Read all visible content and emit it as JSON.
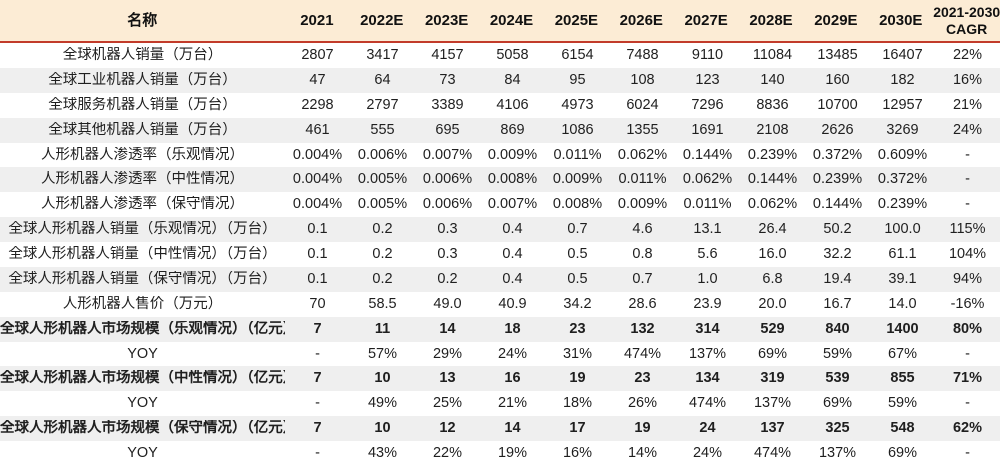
{
  "chart_data": {
    "type": "table",
    "columns": [
      "名称",
      "2021",
      "2022E",
      "2023E",
      "2024E",
      "2025E",
      "2026E",
      "2027E",
      "2028E",
      "2029E",
      "2030E",
      "2021-2030 CAGR"
    ],
    "cagr_header": {
      "line1": "2021-2030",
      "line2": "CAGR"
    },
    "rows": [
      {
        "label": "全球机器人销量（万台）",
        "bold": false,
        "values": [
          "2807",
          "3417",
          "4157",
          "5058",
          "6154",
          "7488",
          "9110",
          "11084",
          "13485",
          "16407",
          "22%"
        ]
      },
      {
        "label": "全球工业机器人销量（万台）",
        "bold": false,
        "values": [
          "47",
          "64",
          "73",
          "84",
          "95",
          "108",
          "123",
          "140",
          "160",
          "182",
          "16%"
        ]
      },
      {
        "label": "全球服务机器人销量（万台）",
        "bold": false,
        "values": [
          "2298",
          "2797",
          "3389",
          "4106",
          "4973",
          "6024",
          "7296",
          "8836",
          "10700",
          "12957",
          "21%"
        ]
      },
      {
        "label": "全球其他机器人销量（万台）",
        "bold": false,
        "values": [
          "461",
          "555",
          "695",
          "869",
          "1086",
          "1355",
          "1691",
          "2108",
          "2626",
          "3269",
          "24%"
        ]
      },
      {
        "label": "人形机器人渗透率（乐观情况）",
        "bold": false,
        "values": [
          "0.004%",
          "0.006%",
          "0.007%",
          "0.009%",
          "0.011%",
          "0.062%",
          "0.144%",
          "0.239%",
          "0.372%",
          "0.609%",
          "-"
        ]
      },
      {
        "label": "人形机器人渗透率（中性情况）",
        "bold": false,
        "values": [
          "0.004%",
          "0.005%",
          "0.006%",
          "0.008%",
          "0.009%",
          "0.011%",
          "0.062%",
          "0.144%",
          "0.239%",
          "0.372%",
          "-"
        ]
      },
      {
        "label": "人形机器人渗透率（保守情况）",
        "bold": false,
        "values": [
          "0.004%",
          "0.005%",
          "0.006%",
          "0.007%",
          "0.008%",
          "0.009%",
          "0.011%",
          "0.062%",
          "0.144%",
          "0.239%",
          "-"
        ]
      },
      {
        "label": "全球人形机器人销量（乐观情况）（万台）",
        "bold": false,
        "values": [
          "0.1",
          "0.2",
          "0.3",
          "0.4",
          "0.7",
          "4.6",
          "13.1",
          "26.4",
          "50.2",
          "100.0",
          "115%"
        ]
      },
      {
        "label": "全球人形机器人销量（中性情况）（万台）",
        "bold": false,
        "values": [
          "0.1",
          "0.2",
          "0.3",
          "0.4",
          "0.5",
          "0.8",
          "5.6",
          "16.0",
          "32.2",
          "61.1",
          "104%"
        ]
      },
      {
        "label": "全球人形机器人销量（保守情况）（万台）",
        "bold": false,
        "values": [
          "0.1",
          "0.2",
          "0.2",
          "0.4",
          "0.5",
          "0.7",
          "1.0",
          "6.8",
          "19.4",
          "39.1",
          "94%"
        ]
      },
      {
        "label": "人形机器人售价（万元）",
        "bold": false,
        "values": [
          "70",
          "58.5",
          "49.0",
          "40.9",
          "34.2",
          "28.6",
          "23.9",
          "20.0",
          "16.7",
          "14.0",
          "-16%"
        ]
      },
      {
        "label": "全球人形机器人市场规模（乐观情况）（亿元）",
        "bold": true,
        "values": [
          "7",
          "11",
          "14",
          "18",
          "23",
          "132",
          "314",
          "529",
          "840",
          "1400",
          "80%"
        ]
      },
      {
        "label": "YOY",
        "bold": false,
        "values": [
          "-",
          "57%",
          "29%",
          "24%",
          "31%",
          "474%",
          "137%",
          "69%",
          "59%",
          "67%",
          "-"
        ]
      },
      {
        "label": "全球人形机器人市场规模（中性情况）（亿元）",
        "bold": true,
        "values": [
          "7",
          "10",
          "13",
          "16",
          "19",
          "23",
          "134",
          "319",
          "539",
          "855",
          "71%"
        ]
      },
      {
        "label": "YOY",
        "bold": false,
        "values": [
          "-",
          "49%",
          "25%",
          "21%",
          "18%",
          "26%",
          "474%",
          "137%",
          "69%",
          "59%",
          "-"
        ]
      },
      {
        "label": "全球人形机器人市场规模（保守情况）（亿元）",
        "bold": true,
        "values": [
          "7",
          "10",
          "12",
          "14",
          "17",
          "19",
          "24",
          "137",
          "325",
          "548",
          "62%"
        ]
      },
      {
        "label": "YOY",
        "bold": false,
        "values": [
          "-",
          "43%",
          "22%",
          "19%",
          "16%",
          "14%",
          "24%",
          "474%",
          "137%",
          "69%",
          "-"
        ]
      }
    ]
  },
  "colors": {
    "header_bg": "#fcecd5",
    "accent_line": "#c23b2a",
    "stripe": "#efefef",
    "text": "#1f1f1f"
  }
}
